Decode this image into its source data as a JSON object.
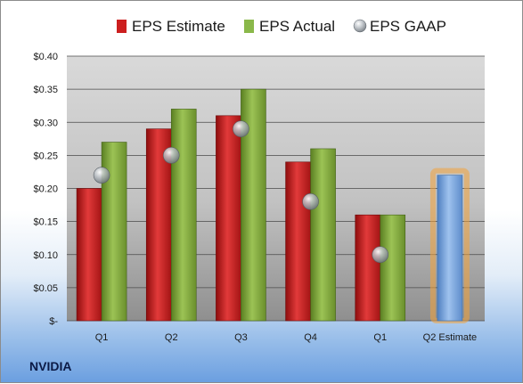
{
  "company": "NVIDIA",
  "chart_data": {
    "type": "bar",
    "categories": [
      "Q1",
      "Q2",
      "Q3",
      "Q4",
      "Q1",
      "Q2 Estimate"
    ],
    "series": [
      {
        "name": "EPS Estimate",
        "values": [
          0.2,
          0.29,
          0.31,
          0.24,
          0.16,
          0.22
        ],
        "color": "#cc1f1f"
      },
      {
        "name": "EPS Actual",
        "values": [
          0.27,
          0.32,
          0.35,
          0.26,
          0.16,
          null
        ],
        "color": "#7fa83a"
      },
      {
        "name": "EPS GAAP",
        "values": [
          0.22,
          0.25,
          0.29,
          0.18,
          0.1,
          null
        ],
        "color": "#a9b1b9"
      }
    ],
    "estimate_color": "#7ea9dc",
    "estimate_glow_color": "#f2a33a",
    "ylim": [
      0,
      0.4
    ],
    "yticks": [
      {
        "value": 0.4,
        "label": "$0.40"
      },
      {
        "value": 0.35,
        "label": "$0.35"
      },
      {
        "value": 0.3,
        "label": "$0.30"
      },
      {
        "value": 0.25,
        "label": "$0.25"
      },
      {
        "value": 0.2,
        "label": "$0.20"
      },
      {
        "value": 0.15,
        "label": "$0.15"
      },
      {
        "value": 0.1,
        "label": "$0.10"
      },
      {
        "value": 0.05,
        "label": "$0.05"
      },
      {
        "value": 0.0,
        "label": "$-"
      }
    ],
    "grid": true,
    "legend_position": "top"
  }
}
